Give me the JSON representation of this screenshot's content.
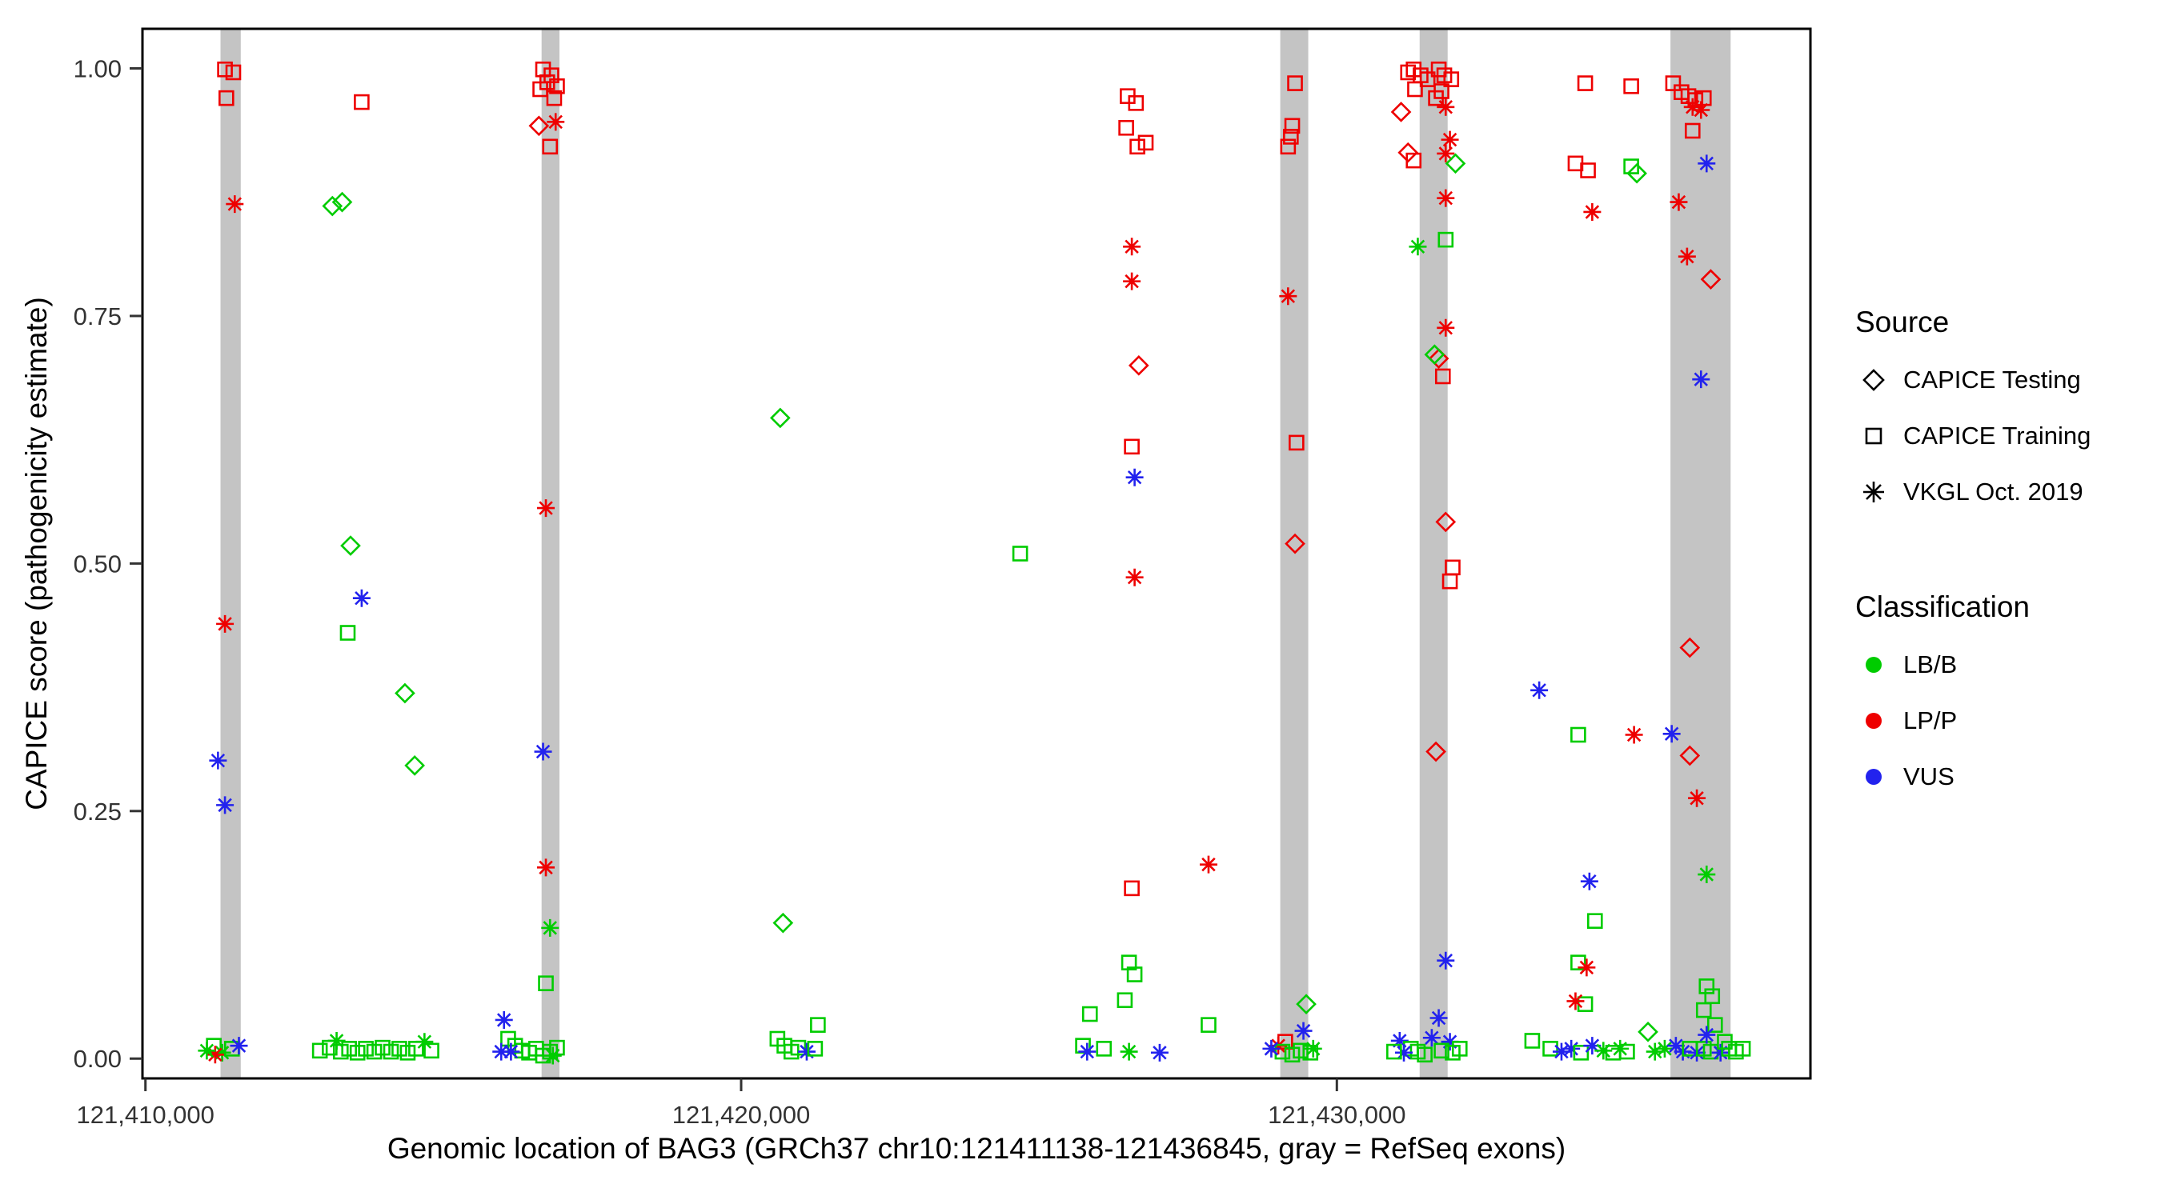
{
  "figure": {
    "background": "#FFFFFF",
    "panel_border_color": "#000000",
    "exon_color": "#C4C4C4",
    "tick_color": "#333333"
  },
  "legend": {
    "source": {
      "title": "Source",
      "items": [
        {
          "label": "CAPICE Testing",
          "shape": "diamond"
        },
        {
          "label": "CAPICE Training",
          "shape": "square"
        },
        {
          "label": "VKGL Oct. 2019",
          "shape": "asterisk"
        }
      ]
    },
    "classification": {
      "title": "Classification",
      "items": [
        {
          "label": "LB/B",
          "color": "#00CC00"
        },
        {
          "label": "LP/P",
          "color": "#EE0000"
        },
        {
          "label": "VUS",
          "color": "#2222EE"
        }
      ]
    }
  },
  "chart_data": {
    "type": "scatter",
    "title": "",
    "xlabel": "Genomic location of BAG3 (GRCh37 chr10:121411138-121436845, gray = RefSeq exons)",
    "ylabel": "CAPICE score (pathogenicity estimate)",
    "xlim": [
      121409950,
      121437950
    ],
    "ylim": [
      -0.02,
      1.04
    ],
    "x_ticks": [
      {
        "value": 121410000,
        "label": "121,410,000"
      },
      {
        "value": 121420000,
        "label": "121,420,000"
      },
      {
        "value": 121430000,
        "label": "121,430,000"
      }
    ],
    "y_ticks": [
      {
        "value": 0.0,
        "label": "0.00"
      },
      {
        "value": 0.25,
        "label": "0.25"
      },
      {
        "value": 0.5,
        "label": "0.50"
      },
      {
        "value": 0.75,
        "label": "0.75"
      },
      {
        "value": 1.0,
        "label": "1.00"
      }
    ],
    "exons_note": "gray vertical bands = RefSeq exons, genomic start/end",
    "exons": [
      [
        121411260,
        121411600
      ],
      [
        121416650,
        121416950
      ],
      [
        121429050,
        121429520
      ],
      [
        121431390,
        121431860
      ],
      [
        121435600,
        121436610
      ]
    ],
    "point_format": [
      "genomic_position",
      "capice_score",
      "source",
      "classification"
    ],
    "source_map": {
      "d": "CAPICE Testing",
      "s": "CAPICE Training",
      "a": "VKGL Oct. 2019"
    },
    "class_map": {
      "g": "LB/B",
      "r": "LP/P",
      "b": "VUS"
    },
    "class_colors": {
      "g": "#00CC00",
      "r": "#EE0000",
      "b": "#2222EE"
    },
    "points": [
      [
        121411335,
        0.999,
        "s",
        "r"
      ],
      [
        121411475,
        0.996,
        "s",
        "r"
      ],
      [
        121411358,
        0.97,
        "s",
        "r"
      ],
      [
        121411499,
        0.863,
        "a",
        "r"
      ],
      [
        121411335,
        0.439,
        "a",
        "r"
      ],
      [
        121411218,
        0.301,
        "a",
        "b"
      ],
      [
        121411335,
        0.256,
        "a",
        "b"
      ],
      [
        121411148,
        0.013,
        "s",
        "g"
      ],
      [
        121411288,
        0.006,
        "a",
        "g"
      ],
      [
        121411452,
        0.01,
        "s",
        "g"
      ],
      [
        121411569,
        0.013,
        "a",
        "b"
      ],
      [
        121411171,
        0.004,
        "a",
        "r"
      ],
      [
        121411030,
        0.008,
        "a",
        "g"
      ],
      [
        121412928,
        0.008,
        "s",
        "g"
      ],
      [
        121413092,
        0.011,
        "s",
        "g"
      ],
      [
        121413209,
        0.018,
        "a",
        "g"
      ],
      [
        121413279,
        0.007,
        "s",
        "g"
      ],
      [
        121413419,
        0.01,
        "s",
        "g"
      ],
      [
        121413560,
        0.006,
        "s",
        "g"
      ],
      [
        121413700,
        0.01,
        "s",
        "g"
      ],
      [
        121413841,
        0.007,
        "s",
        "g"
      ],
      [
        121413981,
        0.011,
        "s",
        "g"
      ],
      [
        121414122,
        0.007,
        "s",
        "g"
      ],
      [
        121414262,
        0.01,
        "s",
        "g"
      ],
      [
        121414403,
        0.006,
        "s",
        "g"
      ],
      [
        121414543,
        0.01,
        "s",
        "g"
      ],
      [
        121414684,
        0.017,
        "a",
        "g"
      ],
      [
        121414801,
        0.008,
        "s",
        "g"
      ],
      [
        121413138,
        0.861,
        "d",
        "g"
      ],
      [
        121413302,
        0.865,
        "d",
        "g"
      ],
      [
        121413630,
        0.966,
        "s",
        "r"
      ],
      [
        121413443,
        0.518,
        "d",
        "g"
      ],
      [
        121413396,
        0.43,
        "s",
        "g"
      ],
      [
        121413630,
        0.465,
        "a",
        "b"
      ],
      [
        121414356,
        0.369,
        "d",
        "g"
      ],
      [
        121414520,
        0.296,
        "d",
        "g"
      ],
      [
        121416675,
        0.999,
        "s",
        "r"
      ],
      [
        121416815,
        0.993,
        "s",
        "r"
      ],
      [
        121416745,
        0.986,
        "s",
        "r"
      ],
      [
        121416909,
        0.982,
        "s",
        "r"
      ],
      [
        121416628,
        0.979,
        "s",
        "r"
      ],
      [
        121416862,
        0.97,
        "s",
        "r"
      ],
      [
        121416605,
        0.942,
        "d",
        "r"
      ],
      [
        121416886,
        0.946,
        "a",
        "r"
      ],
      [
        121416792,
        0.921,
        "s",
        "r"
      ],
      [
        121416722,
        0.556,
        "a",
        "r"
      ],
      [
        121416675,
        0.31,
        "a",
        "b"
      ],
      [
        121416722,
        0.193,
        "a",
        "r"
      ],
      [
        121416792,
        0.132,
        "a",
        "g"
      ],
      [
        121416722,
        0.076,
        "s",
        "g"
      ],
      [
        121416019,
        0.039,
        "a",
        "b"
      ],
      [
        121416089,
        0.02,
        "s",
        "g"
      ],
      [
        121416206,
        0.013,
        "s",
        "g"
      ],
      [
        121415972,
        0.007,
        "a",
        "b"
      ],
      [
        121416323,
        0.008,
        "s",
        "g"
      ],
      [
        121416440,
        0.006,
        "s",
        "g"
      ],
      [
        121416558,
        0.01,
        "s",
        "g"
      ],
      [
        121416675,
        0.003,
        "s",
        "g"
      ],
      [
        121416792,
        0.007,
        "s",
        "g"
      ],
      [
        121416909,
        0.011,
        "s",
        "g"
      ],
      [
        121416136,
        0.007,
        "a",
        "b"
      ],
      [
        121416839,
        0.003,
        "a",
        "g"
      ],
      [
        121420656,
        0.647,
        "d",
        "g"
      ],
      [
        121420703,
        0.137,
        "d",
        "g"
      ],
      [
        121420609,
        0.02,
        "s",
        "g"
      ],
      [
        121420726,
        0.013,
        "s",
        "g"
      ],
      [
        121420843,
        0.007,
        "s",
        "g"
      ],
      [
        121420960,
        0.011,
        "s",
        "g"
      ],
      [
        121421101,
        0.007,
        "a",
        "b"
      ],
      [
        121421288,
        0.034,
        "s",
        "g"
      ],
      [
        121421241,
        0.01,
        "s",
        "g"
      ],
      [
        121424684,
        0.51,
        "s",
        "g"
      ],
      [
        121426488,
        0.972,
        "s",
        "r"
      ],
      [
        121426628,
        0.965,
        "s",
        "r"
      ],
      [
        121426464,
        0.94,
        "s",
        "r"
      ],
      [
        121426652,
        0.921,
        "s",
        "r"
      ],
      [
        121426792,
        0.925,
        "s",
        "r"
      ],
      [
        121426558,
        0.82,
        "a",
        "r"
      ],
      [
        121426558,
        0.785,
        "a",
        "r"
      ],
      [
        121426675,
        0.7,
        "d",
        "r"
      ],
      [
        121426558,
        0.618,
        "s",
        "r"
      ],
      [
        121426605,
        0.587,
        "a",
        "b"
      ],
      [
        121426605,
        0.486,
        "a",
        "r"
      ],
      [
        121426558,
        0.172,
        "s",
        "r"
      ],
      [
        121427846,
        0.196,
        "a",
        "r"
      ],
      [
        121426511,
        0.097,
        "s",
        "g"
      ],
      [
        121426605,
        0.085,
        "s",
        "g"
      ],
      [
        121426441,
        0.059,
        "s",
        "g"
      ],
      [
        121425855,
        0.045,
        "s",
        "g"
      ],
      [
        121425738,
        0.013,
        "s",
        "g"
      ],
      [
        121425808,
        0.007,
        "a",
        "b"
      ],
      [
        121426511,
        0.007,
        "a",
        "g"
      ],
      [
        121427026,
        0.006,
        "a",
        "b"
      ],
      [
        121426090,
        0.01,
        "s",
        "g"
      ],
      [
        121427846,
        0.034,
        "s",
        "g"
      ],
      [
        121429298,
        0.985,
        "s",
        "r"
      ],
      [
        121429251,
        0.942,
        "s",
        "r"
      ],
      [
        121429228,
        0.931,
        "s",
        "r"
      ],
      [
        121429181,
        0.921,
        "s",
        "r"
      ],
      [
        121429181,
        0.77,
        "a",
        "r"
      ],
      [
        121429322,
        0.622,
        "s",
        "r"
      ],
      [
        121429298,
        0.52,
        "d",
        "r"
      ],
      [
        121429486,
        0.055,
        "d",
        "g"
      ],
      [
        121429134,
        0.017,
        "s",
        "r"
      ],
      [
        121429017,
        0.013,
        "a",
        "r"
      ],
      [
        121429439,
        0.028,
        "a",
        "b"
      ],
      [
        121429087,
        0.007,
        "s",
        "g"
      ],
      [
        121429251,
        0.004,
        "s",
        "g"
      ],
      [
        121429392,
        0.008,
        "s",
        "g"
      ],
      [
        121429556,
        0.006,
        "s",
        "g"
      ],
      [
        121428900,
        0.01,
        "a",
        "b"
      ],
      [
        121429603,
        0.01,
        "a",
        "g"
      ],
      [
        121431078,
        0.956,
        "d",
        "r"
      ],
      [
        121431195,
        0.996,
        "s",
        "r"
      ],
      [
        121431289,
        0.999,
        "s",
        "r"
      ],
      [
        121431406,
        0.993,
        "s",
        "r"
      ],
      [
        121431523,
        0.989,
        "s",
        "r"
      ],
      [
        121431710,
        0.999,
        "s",
        "r"
      ],
      [
        121431804,
        0.993,
        "s",
        "r"
      ],
      [
        121431921,
        0.989,
        "s",
        "r"
      ],
      [
        121431312,
        0.979,
        "s",
        "r"
      ],
      [
        121431757,
        0.977,
        "s",
        "r"
      ],
      [
        121431663,
        0.97,
        "s",
        "r"
      ],
      [
        121431195,
        0.915,
        "d",
        "r"
      ],
      [
        121431827,
        0.961,
        "a",
        "r"
      ],
      [
        121431898,
        0.928,
        "a",
        "r"
      ],
      [
        121431827,
        0.914,
        "a",
        "r"
      ],
      [
        121431289,
        0.907,
        "s",
        "r"
      ],
      [
        121431991,
        0.904,
        "d",
        "g"
      ],
      [
        121431827,
        0.869,
        "a",
        "r"
      ],
      [
        121431359,
        0.82,
        "a",
        "g"
      ],
      [
        121431827,
        0.827,
        "s",
        "g"
      ],
      [
        121431827,
        0.738,
        "a",
        "r"
      ],
      [
        121431710,
        0.707,
        "d",
        "r"
      ],
      [
        121431640,
        0.711,
        "d",
        "g"
      ],
      [
        121431780,
        0.689,
        "s",
        "r"
      ],
      [
        121431827,
        0.542,
        "d",
        "r"
      ],
      [
        121431944,
        0.496,
        "s",
        "r"
      ],
      [
        121431898,
        0.482,
        "s",
        "r"
      ],
      [
        121431663,
        0.31,
        "d",
        "r"
      ],
      [
        121431827,
        0.099,
        "a",
        "b"
      ],
      [
        121431710,
        0.041,
        "a",
        "b"
      ],
      [
        121431055,
        0.018,
        "a",
        "b"
      ],
      [
        121431242,
        0.01,
        "s",
        "g"
      ],
      [
        121431359,
        0.007,
        "s",
        "g"
      ],
      [
        121431476,
        0.004,
        "s",
        "g"
      ],
      [
        121431593,
        0.021,
        "a",
        "b"
      ],
      [
        121431898,
        0.017,
        "a",
        "b"
      ],
      [
        121431757,
        0.008,
        "s",
        "g"
      ],
      [
        121431944,
        0.006,
        "s",
        "g"
      ],
      [
        121431125,
        0.006,
        "a",
        "b"
      ],
      [
        121432062,
        0.01,
        "s",
        "g"
      ],
      [
        121430961,
        0.007,
        "s",
        "g"
      ],
      [
        121434169,
        0.985,
        "s",
        "r"
      ],
      [
        121434006,
        0.904,
        "s",
        "r"
      ],
      [
        121434216,
        0.897,
        "s",
        "r"
      ],
      [
        121434287,
        0.855,
        "a",
        "r"
      ],
      [
        121434942,
        0.982,
        "s",
        "r"
      ],
      [
        121434942,
        0.901,
        "s",
        "g"
      ],
      [
        121433397,
        0.372,
        "a",
        "b"
      ],
      [
        121434052,
        0.327,
        "s",
        "g"
      ],
      [
        121434240,
        0.179,
        "a",
        "b"
      ],
      [
        121434333,
        0.139,
        "s",
        "g"
      ],
      [
        121434052,
        0.097,
        "s",
        "g"
      ],
      [
        121434193,
        0.092,
        "a",
        "r"
      ],
      [
        121434169,
        0.055,
        "s",
        "g"
      ],
      [
        121434006,
        0.058,
        "a",
        "r"
      ],
      [
        121433280,
        0.018,
        "s",
        "g"
      ],
      [
        121433584,
        0.01,
        "s",
        "g"
      ],
      [
        121433771,
        0.007,
        "a",
        "b"
      ],
      [
        121433935,
        0.01,
        "a",
        "b"
      ],
      [
        121434099,
        0.006,
        "s",
        "g"
      ],
      [
        121434287,
        0.013,
        "a",
        "b"
      ],
      [
        121434474,
        0.008,
        "a",
        "g"
      ],
      [
        121434638,
        0.006,
        "s",
        "g"
      ],
      [
        121434755,
        0.01,
        "a",
        "g"
      ],
      [
        121434872,
        0.007,
        "s",
        "g"
      ],
      [
        121435645,
        0.985,
        "s",
        "r"
      ],
      [
        121435785,
        0.976,
        "s",
        "r"
      ],
      [
        121435902,
        0.972,
        "s",
        "r"
      ],
      [
        121436019,
        0.968,
        "s",
        "r"
      ],
      [
        121436160,
        0.97,
        "s",
        "r"
      ],
      [
        121435972,
        0.961,
        "a",
        "r"
      ],
      [
        121436113,
        0.958,
        "a",
        "r"
      ],
      [
        121435972,
        0.937,
        "s",
        "r"
      ],
      [
        121435036,
        0.894,
        "d",
        "g"
      ],
      [
        121436207,
        0.904,
        "a",
        "b"
      ],
      [
        121435739,
        0.865,
        "a",
        "r"
      ],
      [
        121435879,
        0.81,
        "a",
        "r"
      ],
      [
        121436277,
        0.787,
        "d",
        "r"
      ],
      [
        121436113,
        0.686,
        "a",
        "b"
      ],
      [
        121435925,
        0.415,
        "d",
        "r"
      ],
      [
        121434989,
        0.327,
        "a",
        "r"
      ],
      [
        121435621,
        0.328,
        "a",
        "b"
      ],
      [
        121435925,
        0.306,
        "d",
        "r"
      ],
      [
        121436043,
        0.263,
        "a",
        "r"
      ],
      [
        121436207,
        0.186,
        "a",
        "g"
      ],
      [
        121436207,
        0.073,
        "s",
        "g"
      ],
      [
        121436301,
        0.063,
        "s",
        "g"
      ],
      [
        121436160,
        0.049,
        "s",
        "g"
      ],
      [
        121436348,
        0.034,
        "s",
        "g"
      ],
      [
        121435223,
        0.027,
        "d",
        "g"
      ],
      [
        121435340,
        0.007,
        "a",
        "g"
      ],
      [
        121435504,
        0.01,
        "a",
        "g"
      ],
      [
        121435691,
        0.013,
        "a",
        "b"
      ],
      [
        121435808,
        0.007,
        "a",
        "b"
      ],
      [
        121435925,
        0.01,
        "s",
        "g"
      ],
      [
        121436043,
        0.006,
        "a",
        "b"
      ],
      [
        121436160,
        0.01,
        "s",
        "g"
      ],
      [
        121436277,
        0.007,
        "s",
        "g"
      ],
      [
        121436441,
        0.006,
        "a",
        "b"
      ],
      [
        121436582,
        0.01,
        "s",
        "g"
      ],
      [
        121436699,
        0.007,
        "s",
        "g"
      ],
      [
        121436816,
        0.01,
        "s",
        "g"
      ],
      [
        121436207,
        0.024,
        "a",
        "b"
      ],
      [
        121436512,
        0.017,
        "s",
        "g"
      ]
    ]
  }
}
